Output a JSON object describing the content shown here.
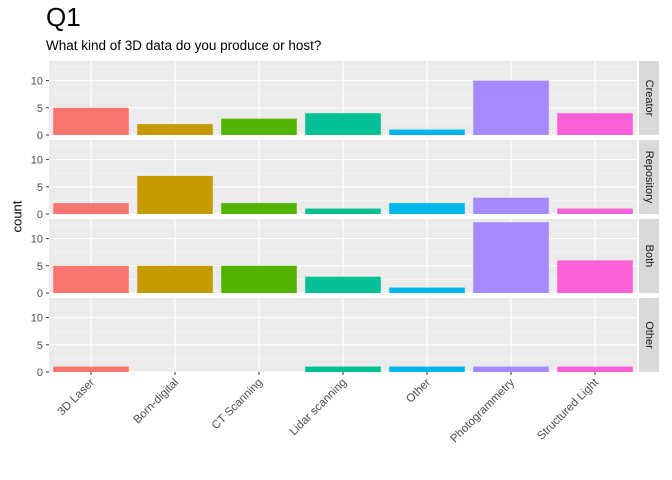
{
  "chart_data": {
    "type": "bar",
    "title": "Q1",
    "subtitle": "What kind of 3D data do you produce or host?",
    "ylabel": "count",
    "xlabel": "",
    "ylim": [
      0,
      13.6
    ],
    "yticks": [
      0,
      5,
      10
    ],
    "grid": true,
    "legend": "none",
    "categories": [
      "3D Laser",
      "Born-digital",
      "CT Scanning",
      "Lidar scanning",
      "Other",
      "Photogrammetry",
      "Structured Light"
    ],
    "colors": [
      "#F8766D",
      "#C49A00",
      "#53B400",
      "#00C094",
      "#00B6EB",
      "#A58AFF",
      "#FB61D7"
    ],
    "facets": [
      {
        "name": "Creator",
        "values": [
          5,
          2,
          3,
          4,
          1,
          10,
          4
        ]
      },
      {
        "name": "Repository",
        "values": [
          2,
          7,
          2,
          1,
          2,
          3,
          1
        ]
      },
      {
        "name": "Both",
        "values": [
          5,
          5,
          5,
          3,
          1,
          13,
          6
        ]
      },
      {
        "name": "Other",
        "values": [
          1,
          0,
          0,
          1,
          1,
          1,
          1
        ]
      }
    ]
  }
}
